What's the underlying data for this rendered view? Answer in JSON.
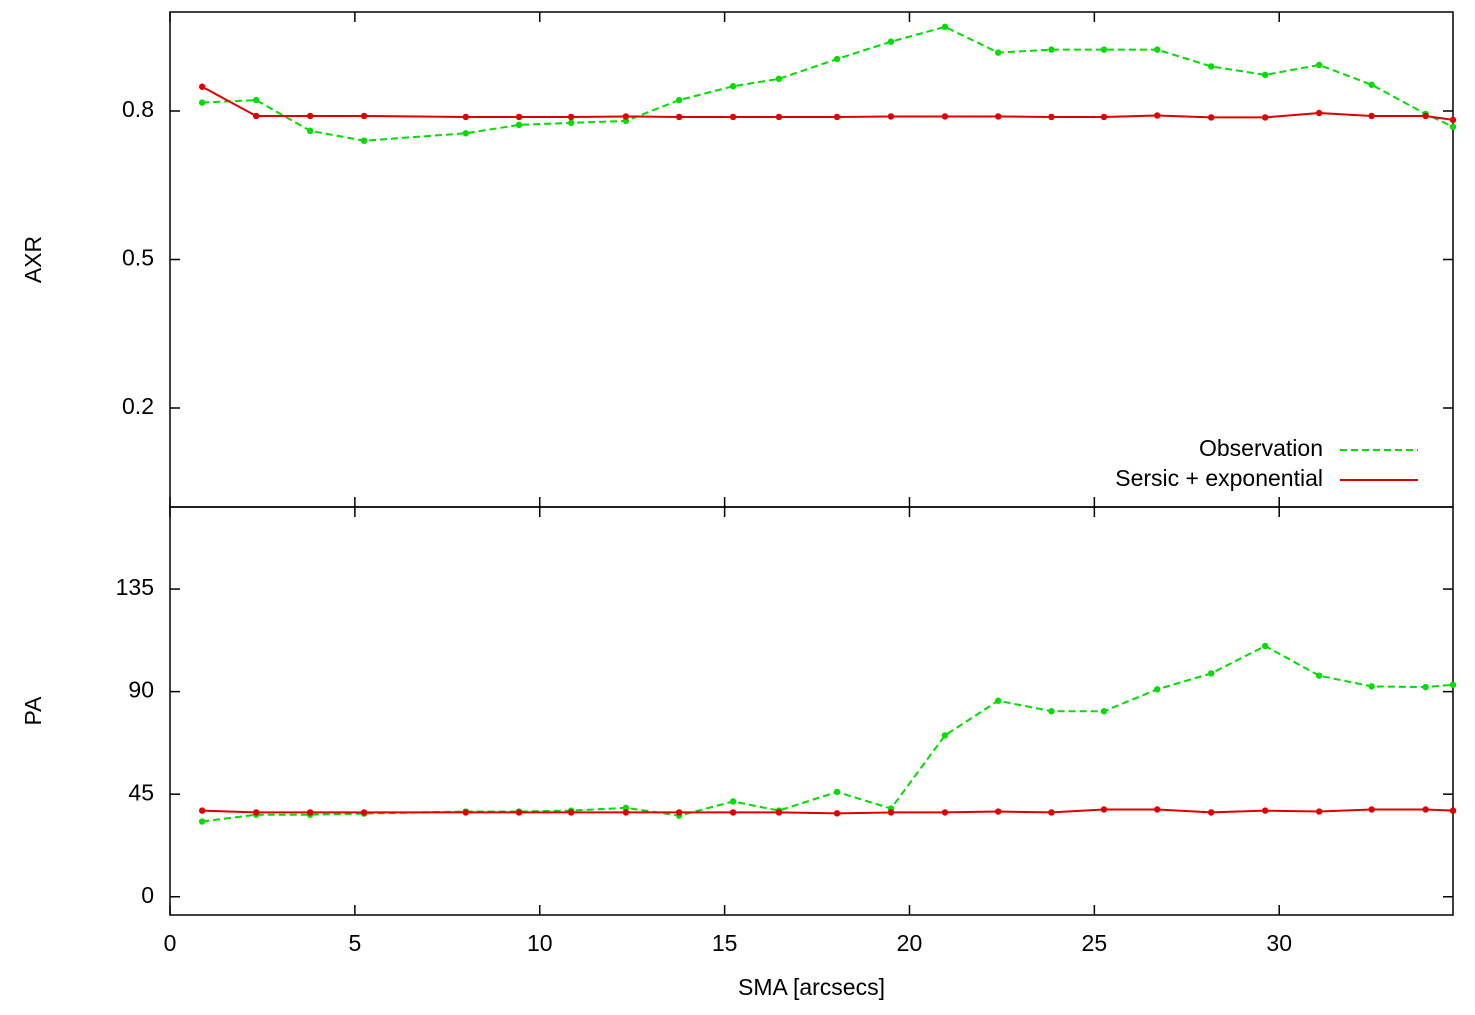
{
  "chart_data": [
    {
      "type": "line",
      "ylabel": "AXR",
      "legend": "lower right",
      "x": [
        0.87,
        2.33,
        3.79,
        5.25,
        8.0,
        9.44,
        10.85,
        12.33,
        13.77,
        15.23,
        16.47,
        18.04,
        19.5,
        20.96,
        22.4,
        23.84,
        25.26,
        26.7,
        28.16,
        29.62,
        31.08,
        32.5,
        33.96,
        34.7
      ],
      "xlim": [
        0,
        34.7
      ],
      "xticks": [
        0,
        5,
        10,
        15,
        20,
        25,
        30
      ],
      "ylim": [
        0,
        1
      ],
      "yticks": [
        0.2,
        0.5,
        0.8
      ],
      "series": [
        {
          "name": "Observation",
          "color": "#00dd00",
          "dashed": true,
          "values": [
            0.817,
            0.822,
            0.76,
            0.74,
            0.755,
            0.772,
            0.776,
            0.78,
            0.822,
            0.85,
            0.865,
            0.905,
            0.94,
            0.97,
            0.918,
            0.924,
            0.924,
            0.924,
            0.89,
            0.873,
            0.893,
            0.853,
            0.794,
            0.768
          ]
        },
        {
          "name": "Sersic + exponential",
          "color": "#e00000",
          "dashed": false,
          "values": [
            0.849,
            0.79,
            0.79,
            0.79,
            0.788,
            0.788,
            0.788,
            0.789,
            0.788,
            0.788,
            0.788,
            0.788,
            0.789,
            0.789,
            0.789,
            0.788,
            0.788,
            0.791,
            0.787,
            0.787,
            0.796,
            0.79,
            0.79,
            0.782
          ]
        }
      ]
    },
    {
      "type": "line",
      "ylabel": "PA",
      "xlabel": "SMA [arcsecs]",
      "x": [
        0.87,
        2.33,
        3.79,
        5.25,
        8.0,
        9.44,
        10.85,
        12.33,
        13.77,
        15.23,
        16.47,
        18.04,
        19.5,
        20.96,
        22.4,
        23.84,
        25.26,
        26.7,
        28.16,
        29.62,
        31.08,
        32.5,
        33.96,
        34.7
      ],
      "xlim": [
        0,
        34.7
      ],
      "xticks": [
        0,
        5,
        10,
        15,
        20,
        25,
        30
      ],
      "ylim": [
        -8,
        171
      ],
      "yticks": [
        0,
        45,
        90,
        135
      ],
      "series": [
        {
          "color": "#00dd00",
          "dashed": true,
          "values": [
            33,
            36,
            36,
            36.5,
            37.4,
            37.4,
            37.8,
            39,
            35.6,
            41.8,
            37.8,
            46,
            38.7,
            70.8,
            86,
            81.4,
            81.4,
            91,
            98,
            110,
            97,
            92.3,
            92,
            93
          ]
        },
        {
          "color": "#e00000",
          "dashed": false,
          "values": [
            37.8,
            37,
            37,
            37,
            37,
            37,
            37,
            37,
            37,
            37,
            37,
            36.6,
            37,
            37,
            37.4,
            37,
            38.3,
            38.3,
            37,
            37.8,
            37.4,
            38.3,
            38.3,
            37.8
          ]
        }
      ]
    }
  ]
}
